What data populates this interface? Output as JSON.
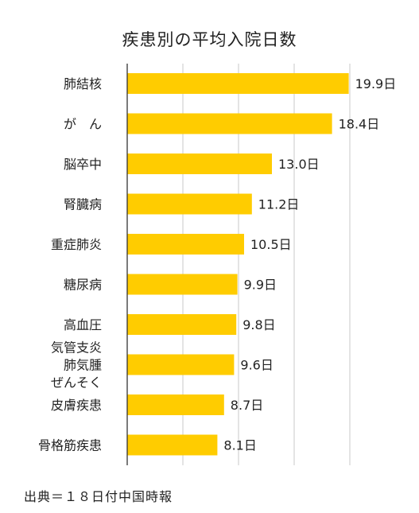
{
  "chart_data": {
    "type": "bar",
    "orientation": "horizontal",
    "title": "疾患別の平均入院日数",
    "categories": [
      "肺結核",
      "が　ん",
      "脳卒中",
      "腎臓病",
      "重症肺炎",
      "糖尿病",
      "高血圧",
      "気管支炎\n肺気腫\nぜんそく",
      "皮膚疾患",
      "骨格筋疾患"
    ],
    "values": [
      19.9,
      18.4,
      13.0,
      11.2,
      10.5,
      9.9,
      9.8,
      9.6,
      8.7,
      8.1
    ],
    "value_labels": [
      "19.9日",
      "18.4日",
      "13.0日",
      "11.2日",
      "10.5日",
      "9.9日",
      "9.8日",
      "9.6日",
      "8.7日",
      "8.1日"
    ],
    "xlim": [
      0,
      20
    ],
    "grid": true,
    "bar_color": "#FFCC00"
  },
  "source": "出典＝１８日付中国時報"
}
